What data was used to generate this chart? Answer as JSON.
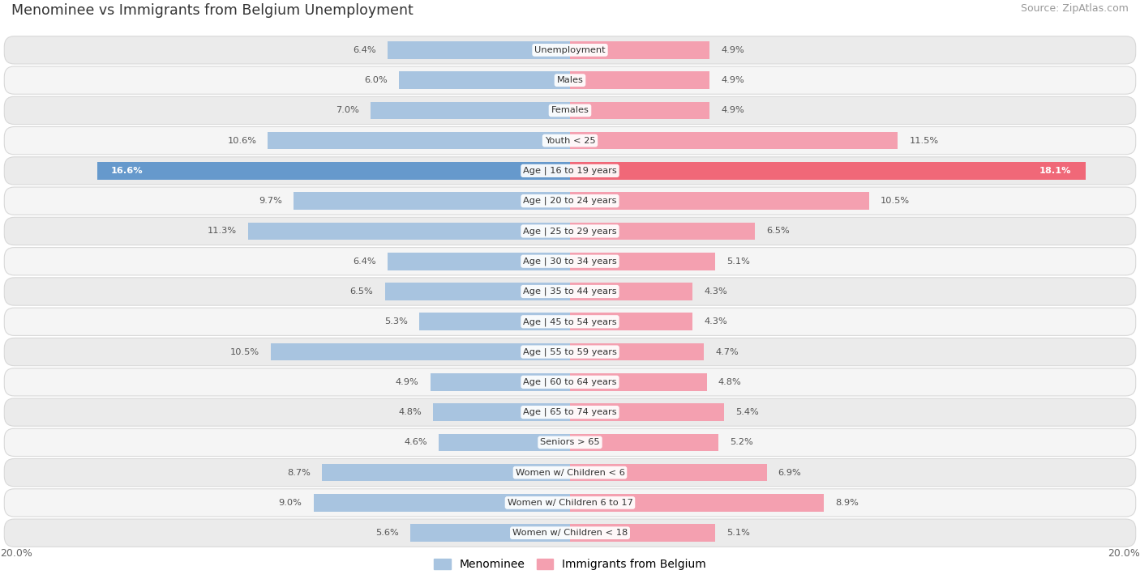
{
  "title": "Menominee vs Immigrants from Belgium Unemployment",
  "source": "Source: ZipAtlas.com",
  "categories": [
    "Unemployment",
    "Males",
    "Females",
    "Youth < 25",
    "Age | 16 to 19 years",
    "Age | 20 to 24 years",
    "Age | 25 to 29 years",
    "Age | 30 to 34 years",
    "Age | 35 to 44 years",
    "Age | 45 to 54 years",
    "Age | 55 to 59 years",
    "Age | 60 to 64 years",
    "Age | 65 to 74 years",
    "Seniors > 65",
    "Women w/ Children < 6",
    "Women w/ Children 6 to 17",
    "Women w/ Children < 18"
  ],
  "menominee": [
    6.4,
    6.0,
    7.0,
    10.6,
    16.6,
    9.7,
    11.3,
    6.4,
    6.5,
    5.3,
    10.5,
    4.9,
    4.8,
    4.6,
    8.7,
    9.0,
    5.6
  ],
  "belgium": [
    4.9,
    4.9,
    4.9,
    11.5,
    18.1,
    10.5,
    6.5,
    5.1,
    4.3,
    4.3,
    4.7,
    4.8,
    5.4,
    5.2,
    6.9,
    8.9,
    5.1
  ],
  "xlim": 20.0,
  "bar_color_menominee": "#a8c4e0",
  "bar_color_belgium": "#f4a0b0",
  "bar_color_menominee_highlight": "#6699cc",
  "bar_color_belgium_highlight": "#f06878",
  "row_bg_even": "#ebebeb",
  "row_bg_odd": "#f5f5f5",
  "row_border": "#d8d8d8",
  "label_color": "#555555",
  "title_color": "#333333",
  "legend_menominee": "Menominee",
  "legend_belgium": "Immigrants from Belgium",
  "value_label_threshold": 0.82
}
